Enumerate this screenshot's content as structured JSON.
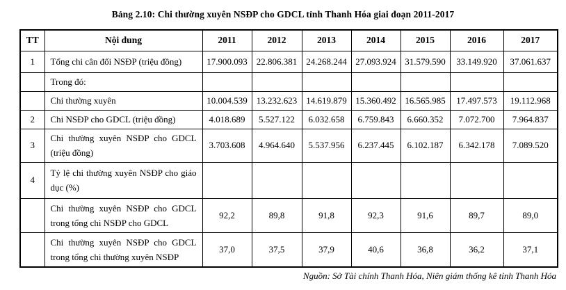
{
  "title": "Bảng 2.10: Chi thường xuyên NSĐP cho GDCL tỉnh Thanh Hóa giai đoạn 2011-2017",
  "source": "Nguồn: Sở Tài chính Thanh Hóa, Niên giám thống kê tỉnh Thanh Hóa",
  "table": {
    "headers": [
      "TT",
      "Nội dung",
      "2011",
      "2012",
      "2013",
      "2014",
      "2015",
      "2016",
      "2017"
    ],
    "rows": [
      {
        "tt": "1",
        "label": "Tổng chi cân đối NSĐP (triệu đồng)",
        "values": [
          "17.900.093",
          "22.806.381",
          "24.268.244",
          "27.093.924",
          "31.579.590",
          "33.149.920",
          "37.061.637"
        ]
      },
      {
        "tt": "",
        "label": "Trong đó:",
        "values": [
          "",
          "",
          "",
          "",
          "",
          "",
          ""
        ]
      },
      {
        "tt": "",
        "label": "Chi thường xuyên",
        "values": [
          "10.004.539",
          "13.232.623",
          "14.619.879",
          "15.360.492",
          "16.565.985",
          "17.497.573",
          "19.112.968"
        ]
      },
      {
        "tt": "2",
        "label": "Chi NSĐP cho GDCL (triệu đồng)",
        "values": [
          "4.018.689",
          "5.527.122",
          "6.032.658",
          "6.759.843",
          "6.660.352",
          "7.072.700",
          "7.964.837"
        ]
      },
      {
        "tt": "3",
        "label": "Chi thường xuyên NSĐP cho GDCL (triệu đồng)",
        "values": [
          "3.703.608",
          "4.964.640",
          "5.537.956",
          "6.237.445",
          "6.102.187",
          "6.342.178",
          "7.089.520"
        ]
      },
      {
        "tt": "4",
        "label": "Tỷ lệ chi thường xuyên NSĐP cho giáo dục (%)",
        "values": [
          "",
          "",
          "",
          "",
          "",
          "",
          ""
        ]
      },
      {
        "tt": "",
        "label": "Chi thường xuyên NSĐP cho GDCL trong tổng chi NSĐP cho GDCL",
        "values": [
          "92,2",
          "89,8",
          "91,8",
          "92,3",
          "91,6",
          "89,7",
          "89,0"
        ]
      },
      {
        "tt": "",
        "label": "Chi thường xuyên NSĐP cho GDCL trong tổng chi thường xuyên NSĐP",
        "values": [
          "37,0",
          "37,5",
          "37,9",
          "40,6",
          "36,8",
          "36,2",
          "37,1"
        ]
      }
    ]
  }
}
